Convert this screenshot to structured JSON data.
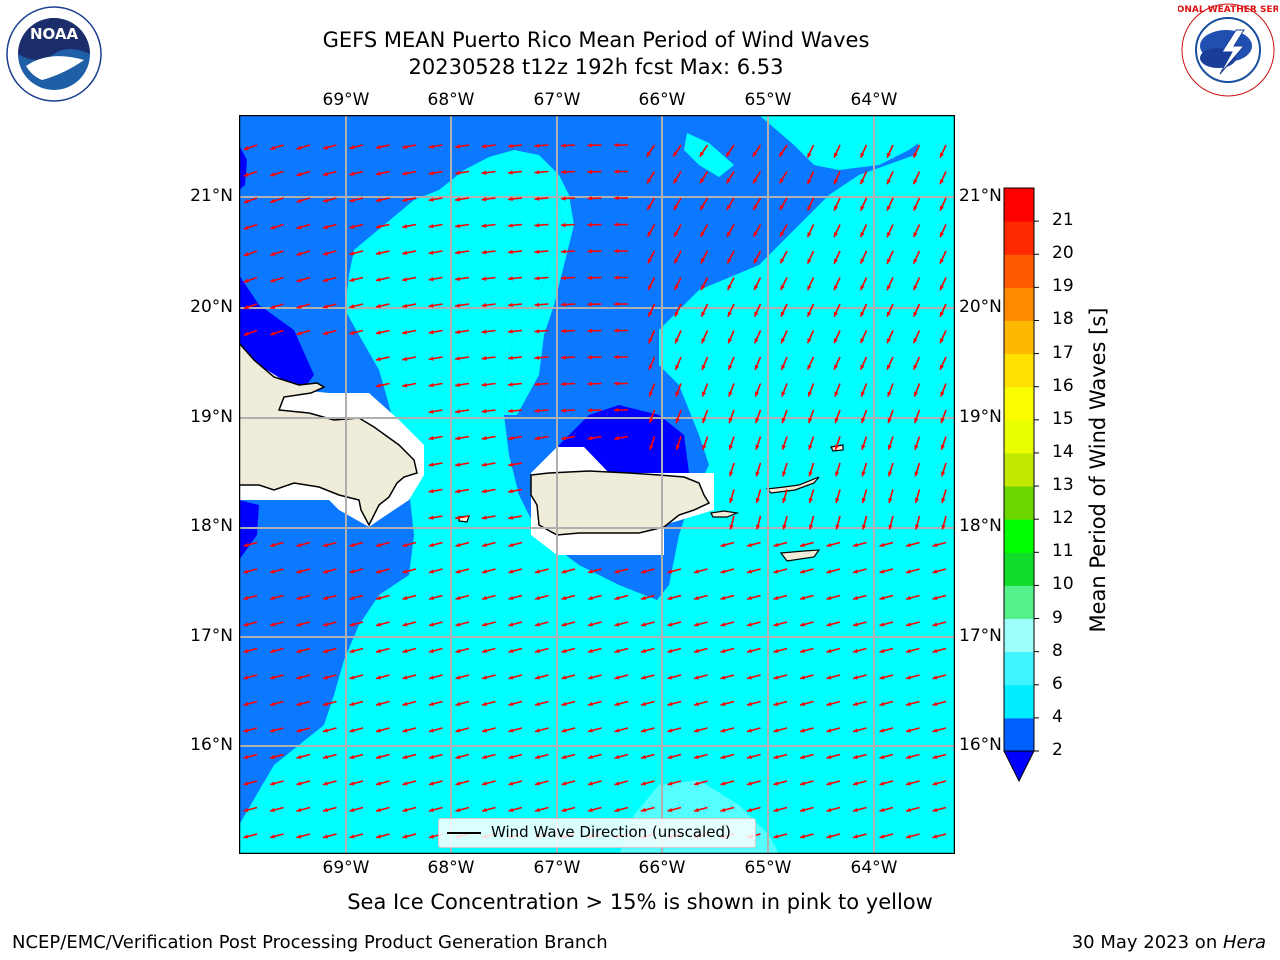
{
  "title": "GEFS MEAN Puerto Rico Mean Period of Wind Waves",
  "subtitle": "20230528 t12z 192h fcst   Max: 6.53",
  "logos": {
    "left": "NOAA",
    "right": "NATIONAL WEATHER SERVICE"
  },
  "map": {
    "region": "Puerto Rico",
    "lon_labels": [
      "69°W",
      "68°W",
      "67°W",
      "66°W",
      "65°W",
      "64°W"
    ],
    "lat_labels": [
      "21°N",
      "20°N",
      "19°N",
      "18°N",
      "17°N",
      "16°N"
    ],
    "legend_label": "Wind Wave Direction (unscaled)",
    "arrow_color": "#ff0000",
    "land_color": "#efedd9"
  },
  "colorbar": {
    "label": "Mean Period of Wind Waves [s]",
    "ticks": [
      "2",
      "4",
      "6",
      "8",
      "9",
      "10",
      "11",
      "12",
      "13",
      "14",
      "15",
      "16",
      "17",
      "18",
      "19",
      "20",
      "21"
    ],
    "colors": [
      "#0060ff",
      "#00eeff",
      "#40f5ff",
      "#9cfffa",
      "#55f28c",
      "#11dc2a",
      "#00ff00",
      "#6cd600",
      "#c1e800",
      "#e9ff00",
      "#fcfc00",
      "#ffe000",
      "#ffb800",
      "#ff8a00",
      "#ff5a00",
      "#ff2800",
      "#ff0000"
    ],
    "under_color": "#0000ff"
  },
  "footnote": "Sea Ice Concentration > 15% is shown in pink to yellow",
  "footer": {
    "left": "NCEP/EMC/Verification Post Processing Product Generation Branch",
    "right_prefix": "30 May 2023 on ",
    "right_host": "Hera"
  }
}
